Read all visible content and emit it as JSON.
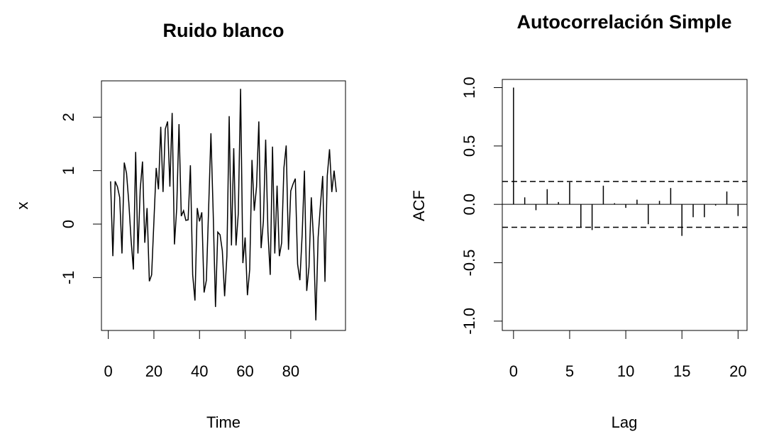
{
  "chart_data": [
    {
      "type": "line",
      "title": "Ruido blanco",
      "x_label": "Time",
      "y_label": "x",
      "x": [
        1,
        2,
        3,
        4,
        5,
        6,
        7,
        8,
        9,
        10,
        11,
        12,
        13,
        14,
        15,
        16,
        17,
        18,
        19,
        20,
        21,
        22,
        23,
        24,
        25,
        26,
        27,
        28,
        29,
        30,
        31,
        32,
        33,
        34,
        35,
        36,
        37,
        38,
        39,
        40,
        41,
        42,
        43,
        44,
        45,
        46,
        47,
        48,
        49,
        50,
        51,
        52,
        53,
        54,
        55,
        56,
        57,
        58,
        59,
        60,
        61,
        62,
        63,
        64,
        65,
        66,
        67,
        68,
        69,
        70,
        71,
        72,
        73,
        74,
        75,
        76,
        77,
        78,
        79,
        80,
        81,
        82,
        83,
        84,
        85,
        86,
        87,
        88,
        89,
        90,
        91,
        92,
        93,
        94,
        95,
        96,
        97,
        98,
        99,
        100
      ],
      "series": [
        {
          "name": "x",
          "color": "#000000",
          "values": [
            0.8,
            -0.6,
            0.8,
            0.7,
            0.5,
            -0.55,
            1.15,
            0.95,
            0.4,
            -0.3,
            -0.85,
            1.35,
            -0.55,
            0.65,
            1.17,
            -0.35,
            0.3,
            -1.07,
            -0.95,
            0.05,
            1.05,
            0.65,
            1.82,
            0.6,
            1.78,
            1.92,
            0.7,
            2.08,
            -0.38,
            0.3,
            1.87,
            0.15,
            0.25,
            0.07,
            0.08,
            1.1,
            -0.95,
            -1.43,
            0.3,
            0.05,
            0.22,
            -1.28,
            -1.05,
            0.3,
            1.7,
            0.2,
            -1.55,
            -0.15,
            -0.2,
            -0.5,
            -1.35,
            -0.6,
            2.02,
            -0.4,
            1.42,
            -0.4,
            0.2,
            2.53,
            -0.73,
            -0.25,
            -1.33,
            -0.85,
            1.2,
            0.25,
            0.7,
            1.92,
            -0.45,
            0.05,
            1.58,
            -0.15,
            -0.95,
            1.45,
            -0.55,
            0.72,
            -0.6,
            -0.35,
            1.05,
            1.47,
            -0.48,
            0.62,
            0.75,
            0.85,
            -0.75,
            -1.05,
            -0.2,
            1.0,
            -1.25,
            -0.8,
            0.5,
            -0.3,
            -1.8,
            -0.25,
            0.35,
            0.9,
            -1.08,
            0.9,
            1.4,
            0.6,
            1.0,
            0.6
          ]
        }
      ],
      "xlim": [
        -3,
        104
      ],
      "xticks": [
        0,
        20,
        40,
        60,
        80
      ],
      "ylim": [
        -1.99,
        2.68
      ],
      "yticks": [
        -1,
        0,
        1,
        2
      ]
    },
    {
      "type": "acf",
      "title": "Autocorrelación Simple",
      "x_label": "Lag",
      "y_label": "ACF",
      "x": [
        0,
        1,
        2,
        3,
        4,
        5,
        6,
        7,
        8,
        9,
        10,
        11,
        12,
        13,
        14,
        15,
        16,
        17,
        18,
        19,
        20
      ],
      "values": [
        1,
        0.06,
        -0.05,
        0.13,
        0.02,
        0.19,
        -0.2,
        -0.22,
        0.16,
        0.01,
        -0.03,
        0.04,
        -0.17,
        0.03,
        0.14,
        -0.27,
        -0.11,
        -0.11,
        -0.01,
        0.11,
        -0.1
      ],
      "color": "#000000",
      "confidence": [
        -0.196,
        0.196
      ],
      "xlim": [
        -1,
        20.8
      ],
      "xticks": [
        0,
        5,
        10,
        15,
        20
      ],
      "ylim": [
        -1.08,
        1.07
      ],
      "yticks": [
        {
          "value": -1,
          "label": "-1.0"
        },
        {
          "value": -0.5,
          "label": "-0.5"
        },
        {
          "value": 0,
          "label": "0.0"
        },
        {
          "value": 0.5,
          "label": "0.5"
        },
        {
          "value": 1,
          "label": "1.0"
        }
      ]
    }
  ]
}
